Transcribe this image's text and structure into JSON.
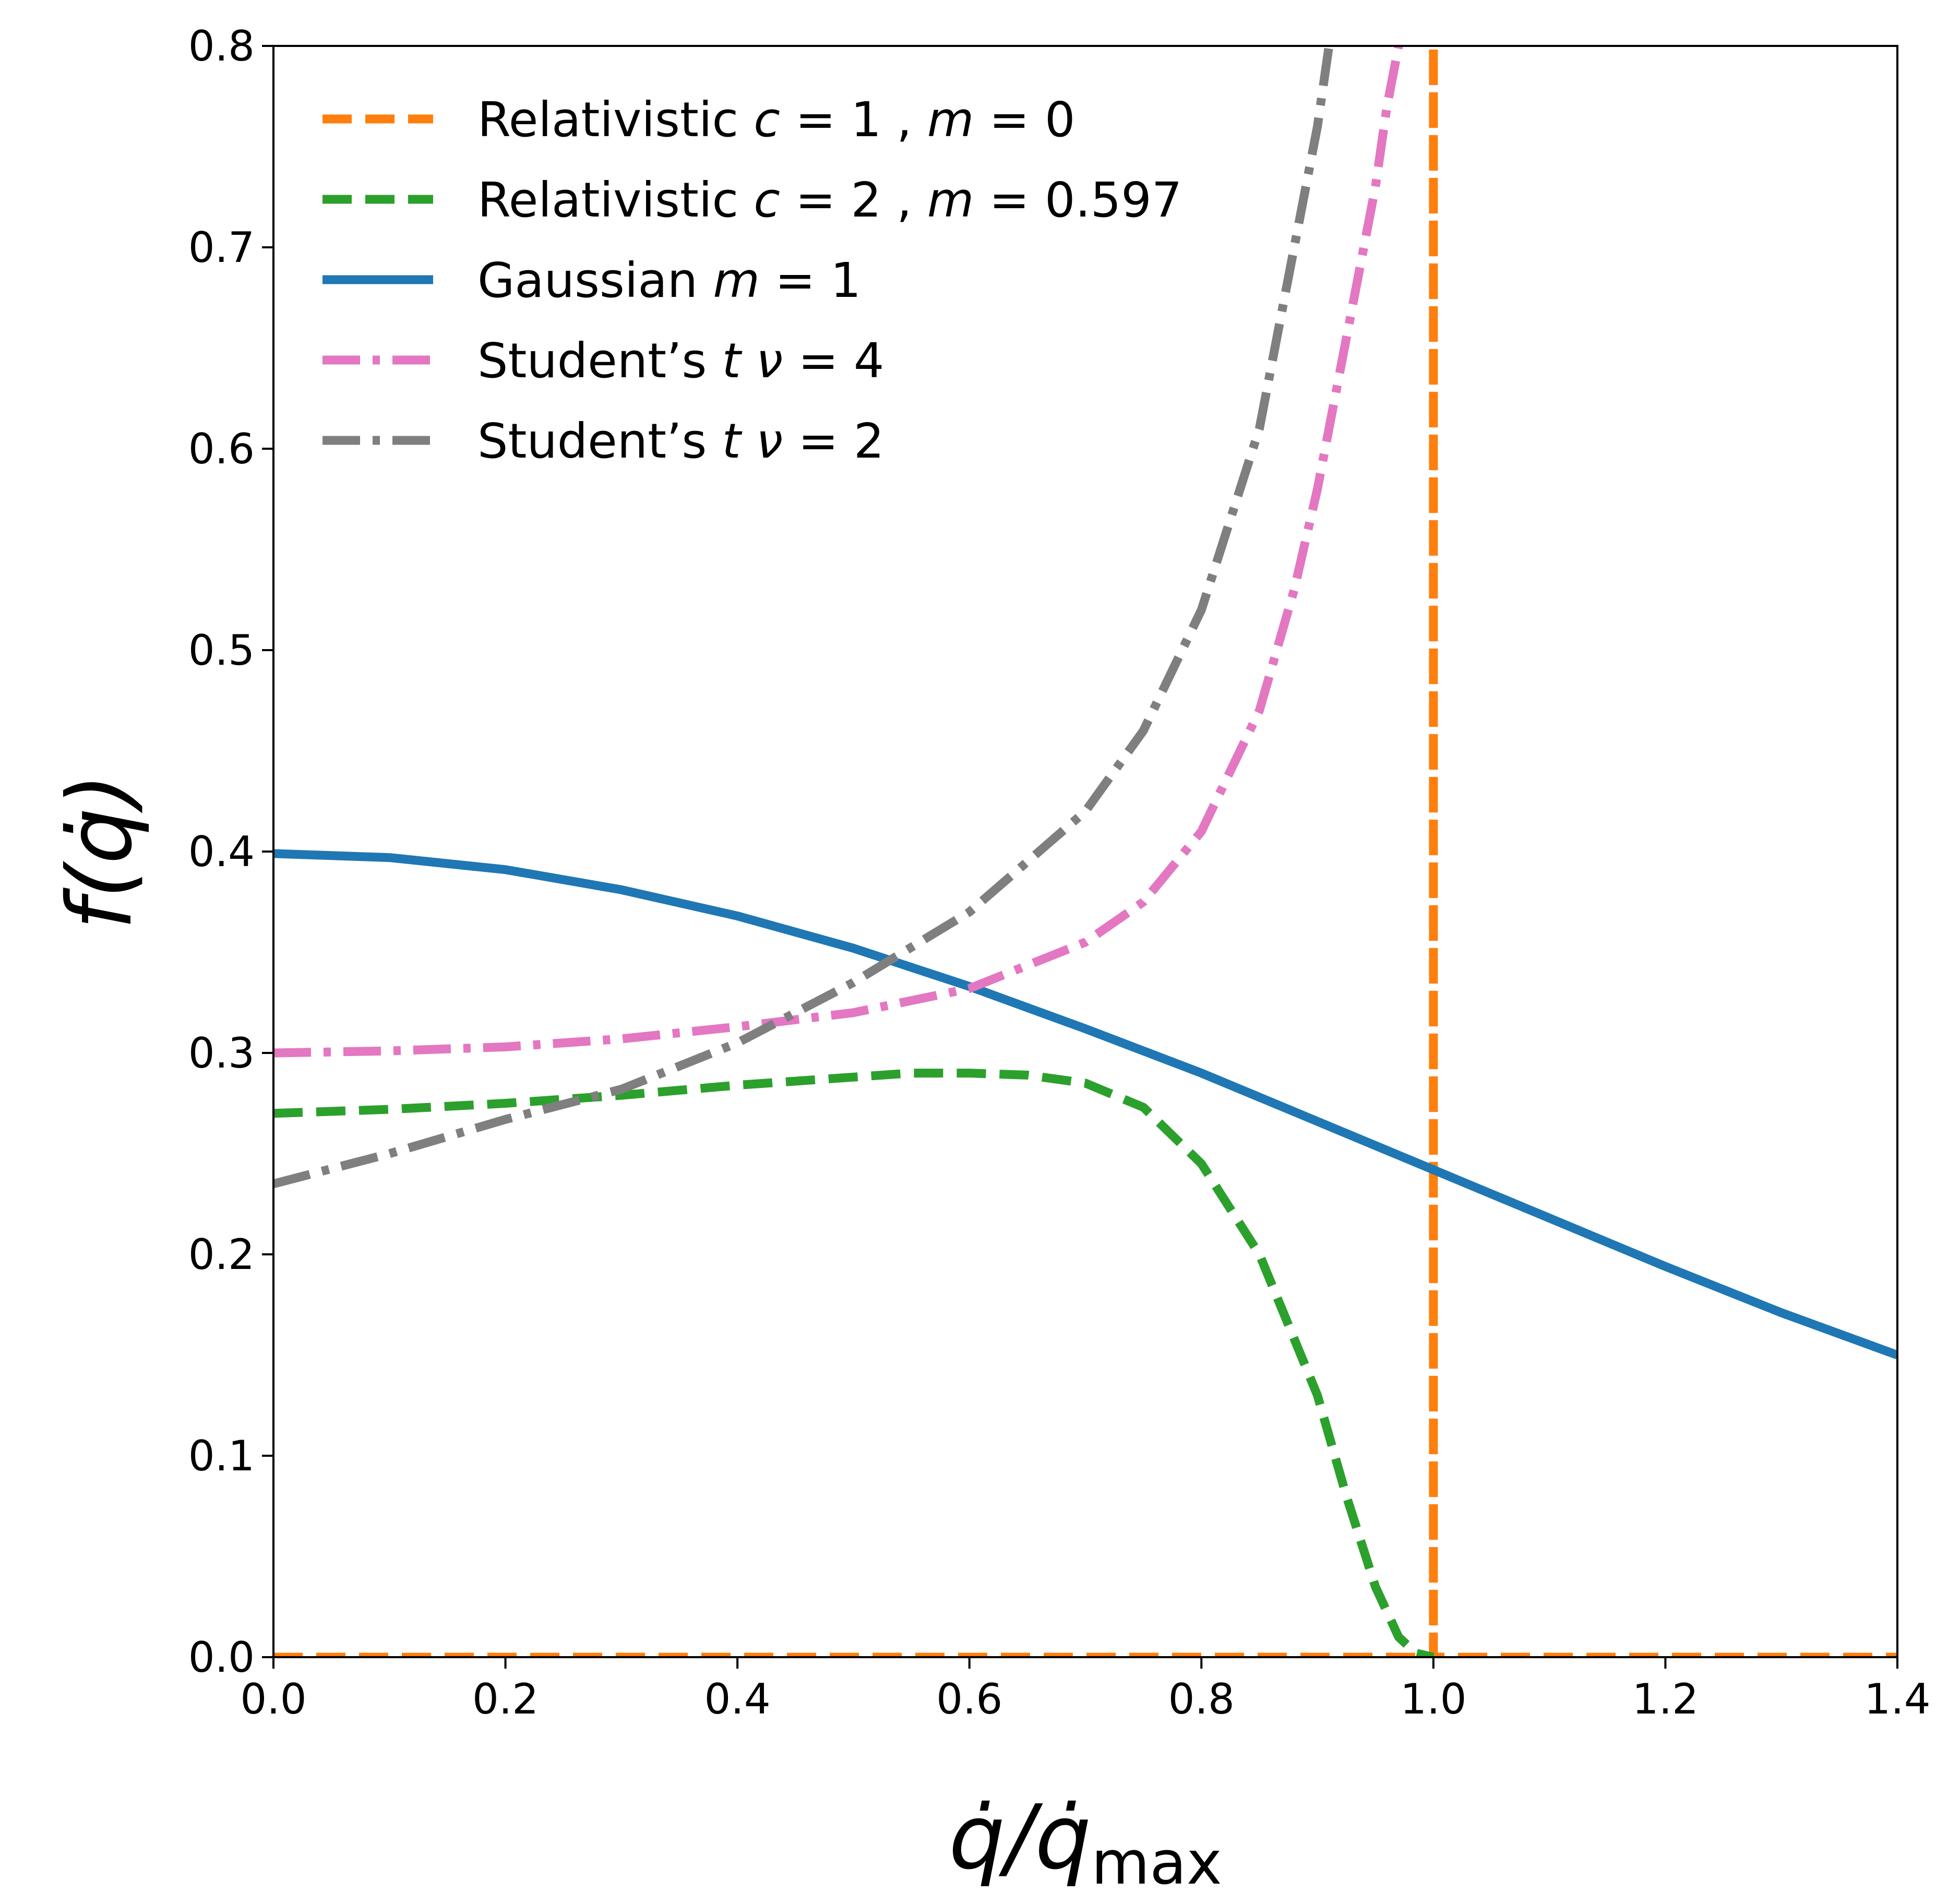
{
  "chart_data": {
    "type": "line",
    "title": "",
    "xlabel_parts": {
      "main": "q̇/q̇",
      "sub": "max"
    },
    "ylabel": "f(q̇)",
    "xlim": [
      0.0,
      1.4
    ],
    "ylim": [
      0.0,
      0.8
    ],
    "xticks": [
      0.0,
      0.2,
      0.4,
      0.6,
      0.8,
      1.0,
      1.2,
      1.4
    ],
    "xtick_labels": [
      "0.0",
      "0.2",
      "0.4",
      "0.6",
      "0.8",
      "1.0",
      "1.2",
      "1.4"
    ],
    "yticks": [
      0.0,
      0.1,
      0.2,
      0.3,
      0.4,
      0.5,
      0.6,
      0.7,
      0.8
    ],
    "ytick_labels": [
      "0.0",
      "0.1",
      "0.2",
      "0.3",
      "0.4",
      "0.5",
      "0.6",
      "0.7",
      "0.8"
    ],
    "grid": false,
    "legend_position": "top-left",
    "series": [
      {
        "id": "relativistic-c1",
        "name": "Relativistic c = 1 , m = 0",
        "legend_parts": [
          {
            "text": "Relativistic ",
            "italic": false
          },
          {
            "text": "c",
            "italic": true
          },
          {
            "text": " = 1 , ",
            "italic": false
          },
          {
            "text": "m",
            "italic": true
          },
          {
            "text": " = 0",
            "italic": false
          }
        ],
        "color": "#ff7f0e",
        "style": "dashed",
        "x": [
          0.0,
          1.0,
          1.0,
          1.0,
          1.4
        ],
        "y": [
          0.0,
          0.0,
          0.8,
          0.0,
          0.0
        ]
      },
      {
        "id": "relativistic-c2",
        "name": "Relativistic c = 2 , m = 0.597",
        "legend_parts": [
          {
            "text": "Relativistic ",
            "italic": false
          },
          {
            "text": "c",
            "italic": true
          },
          {
            "text": " = 2 , ",
            "italic": false
          },
          {
            "text": "m",
            "italic": true
          },
          {
            "text": " = 0.597",
            "italic": false
          }
        ],
        "color": "#2ca02c",
        "style": "dashed",
        "x": [
          0.0,
          0.1,
          0.2,
          0.3,
          0.4,
          0.5,
          0.55,
          0.6,
          0.65,
          0.7,
          0.75,
          0.8,
          0.85,
          0.9,
          0.925,
          0.95,
          0.97,
          0.985,
          1.0
        ],
        "y": [
          0.27,
          0.272,
          0.275,
          0.279,
          0.284,
          0.288,
          0.29,
          0.29,
          0.289,
          0.285,
          0.273,
          0.245,
          0.2,
          0.13,
          0.08,
          0.035,
          0.01,
          0.002,
          0.0
        ]
      },
      {
        "id": "gaussian",
        "name": "Gaussian m = 1",
        "legend_parts": [
          {
            "text": "Gaussian ",
            "italic": false
          },
          {
            "text": "m",
            "italic": true
          },
          {
            "text": " = 1",
            "italic": false
          }
        ],
        "color": "#1f77b4",
        "style": "solid",
        "x": [
          0.0,
          0.1,
          0.2,
          0.3,
          0.4,
          0.5,
          0.6,
          0.7,
          0.8,
          0.9,
          1.0,
          1.1,
          1.2,
          1.3,
          1.4
        ],
        "y": [
          0.399,
          0.397,
          0.391,
          0.381,
          0.368,
          0.352,
          0.333,
          0.312,
          0.29,
          0.266,
          0.242,
          0.218,
          0.194,
          0.171,
          0.15
        ]
      },
      {
        "id": "student-t4",
        "name": "Student’s t ν = 4",
        "legend_parts": [
          {
            "text": "Student’s ",
            "italic": false
          },
          {
            "text": "t",
            "italic": true
          },
          {
            "text": " ",
            "italic": false
          },
          {
            "text": "ν",
            "italic": true
          },
          {
            "text": " = 4",
            "italic": false
          }
        ],
        "color": "#e377c2",
        "style": "dashdot",
        "x": [
          0.0,
          0.1,
          0.2,
          0.3,
          0.4,
          0.5,
          0.6,
          0.7,
          0.75,
          0.8,
          0.85,
          0.88,
          0.9,
          0.92,
          0.94,
          0.95,
          0.96,
          0.97
        ],
        "y": [
          0.3,
          0.301,
          0.303,
          0.307,
          0.313,
          0.32,
          0.332,
          0.355,
          0.375,
          0.41,
          0.47,
          0.53,
          0.58,
          0.64,
          0.7,
          0.73,
          0.77,
          0.8
        ]
      },
      {
        "id": "student-t2",
        "name": "Student’s t ν = 2",
        "legend_parts": [
          {
            "text": "Student’s ",
            "italic": false
          },
          {
            "text": "t",
            "italic": true
          },
          {
            "text": " ",
            "italic": false
          },
          {
            "text": "ν",
            "italic": true
          },
          {
            "text": " = 2",
            "italic": false
          }
        ],
        "color": "#7f7f7f",
        "style": "dashdot",
        "x": [
          0.0,
          0.1,
          0.2,
          0.3,
          0.4,
          0.5,
          0.6,
          0.7,
          0.75,
          0.8,
          0.85,
          0.88,
          0.9,
          0.91
        ],
        "y": [
          0.235,
          0.25,
          0.267,
          0.282,
          0.305,
          0.335,
          0.37,
          0.42,
          0.46,
          0.52,
          0.61,
          0.7,
          0.76,
          0.8
        ]
      }
    ]
  }
}
